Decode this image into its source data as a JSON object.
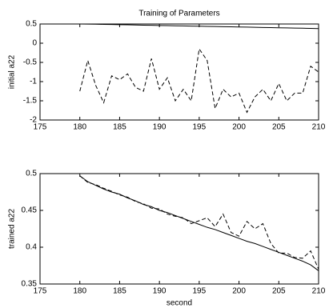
{
  "chart_data": [
    {
      "type": "line",
      "title": "Training of Parameters",
      "y_label": "initial a22",
      "x": [
        180,
        181,
        182,
        183,
        184,
        185,
        186,
        187,
        188,
        189,
        190,
        191,
        192,
        193,
        194,
        195,
        196,
        197,
        198,
        199,
        200,
        201,
        202,
        203,
        204,
        205,
        206,
        207,
        208,
        209,
        210
      ],
      "series": [
        {
          "color": "#000000",
          "style": "solid",
          "values": [
            0.5,
            0.497,
            0.494,
            0.49,
            0.486,
            0.482,
            0.478,
            0.474,
            0.47,
            0.466,
            0.462,
            0.458,
            0.454,
            0.45,
            0.446,
            0.442,
            0.438,
            0.434,
            0.43,
            0.426,
            0.422,
            0.418,
            0.414,
            0.41,
            0.406,
            0.402,
            0.398,
            0.394,
            0.39,
            0.385,
            0.38
          ]
        },
        {
          "color": "#000000",
          "style": "dashed",
          "values": [
            -1.25,
            -0.45,
            -1.1,
            -1.55,
            -0.85,
            -0.95,
            -0.8,
            -1.15,
            -1.25,
            -0.4,
            -1.2,
            -0.9,
            -1.5,
            -1.2,
            -1.5,
            -0.15,
            -0.45,
            -1.7,
            -1.2,
            -1.4,
            -1.3,
            -1.8,
            -1.4,
            -1.2,
            -1.5,
            -1.05,
            -1.5,
            -1.3,
            -1.3,
            -0.6,
            -0.75
          ]
        }
      ],
      "xlim": [
        175,
        210
      ],
      "xticks": [
        175,
        180,
        185,
        190,
        195,
        200,
        205,
        210
      ],
      "ylim": [
        -2,
        0.5
      ],
      "yticks": [
        -2,
        -1.5,
        -1,
        -0.5,
        0,
        0.5
      ]
    },
    {
      "type": "line",
      "x_label": "second",
      "y_label": "trained a22",
      "x": [
        180,
        181,
        182,
        183,
        184,
        185,
        186,
        187,
        188,
        189,
        190,
        191,
        192,
        193,
        194,
        195,
        196,
        197,
        198,
        199,
        200,
        201,
        202,
        203,
        204,
        205,
        206,
        207,
        208,
        209,
        210
      ],
      "series": [
        {
          "color": "#000000",
          "style": "solid",
          "values": [
            0.497,
            0.489,
            0.484,
            0.479,
            0.475,
            0.472,
            0.467,
            0.463,
            0.458,
            0.455,
            0.45,
            0.447,
            0.443,
            0.439,
            0.435,
            0.431,
            0.427,
            0.424,
            0.42,
            0.416,
            0.412,
            0.408,
            0.405,
            0.401,
            0.397,
            0.393,
            0.389,
            0.385,
            0.381,
            0.376,
            0.368
          ]
        },
        {
          "color": "#000000",
          "style": "dashed",
          "values": [
            0.497,
            0.488,
            0.485,
            0.48,
            0.476,
            0.471,
            0.468,
            0.462,
            0.459,
            0.453,
            0.452,
            0.445,
            0.442,
            0.44,
            0.432,
            0.436,
            0.44,
            0.428,
            0.445,
            0.42,
            0.415,
            0.435,
            0.425,
            0.432,
            0.405,
            0.392,
            0.392,
            0.386,
            0.385,
            0.395,
            0.37
          ]
        }
      ],
      "xlim": [
        175,
        210
      ],
      "xticks": [
        175,
        180,
        185,
        190,
        195,
        200,
        205,
        210
      ],
      "ylim": [
        0.35,
        0.5
      ],
      "yticks": [
        0.35,
        0.4,
        0.45,
        0.5
      ]
    }
  ]
}
